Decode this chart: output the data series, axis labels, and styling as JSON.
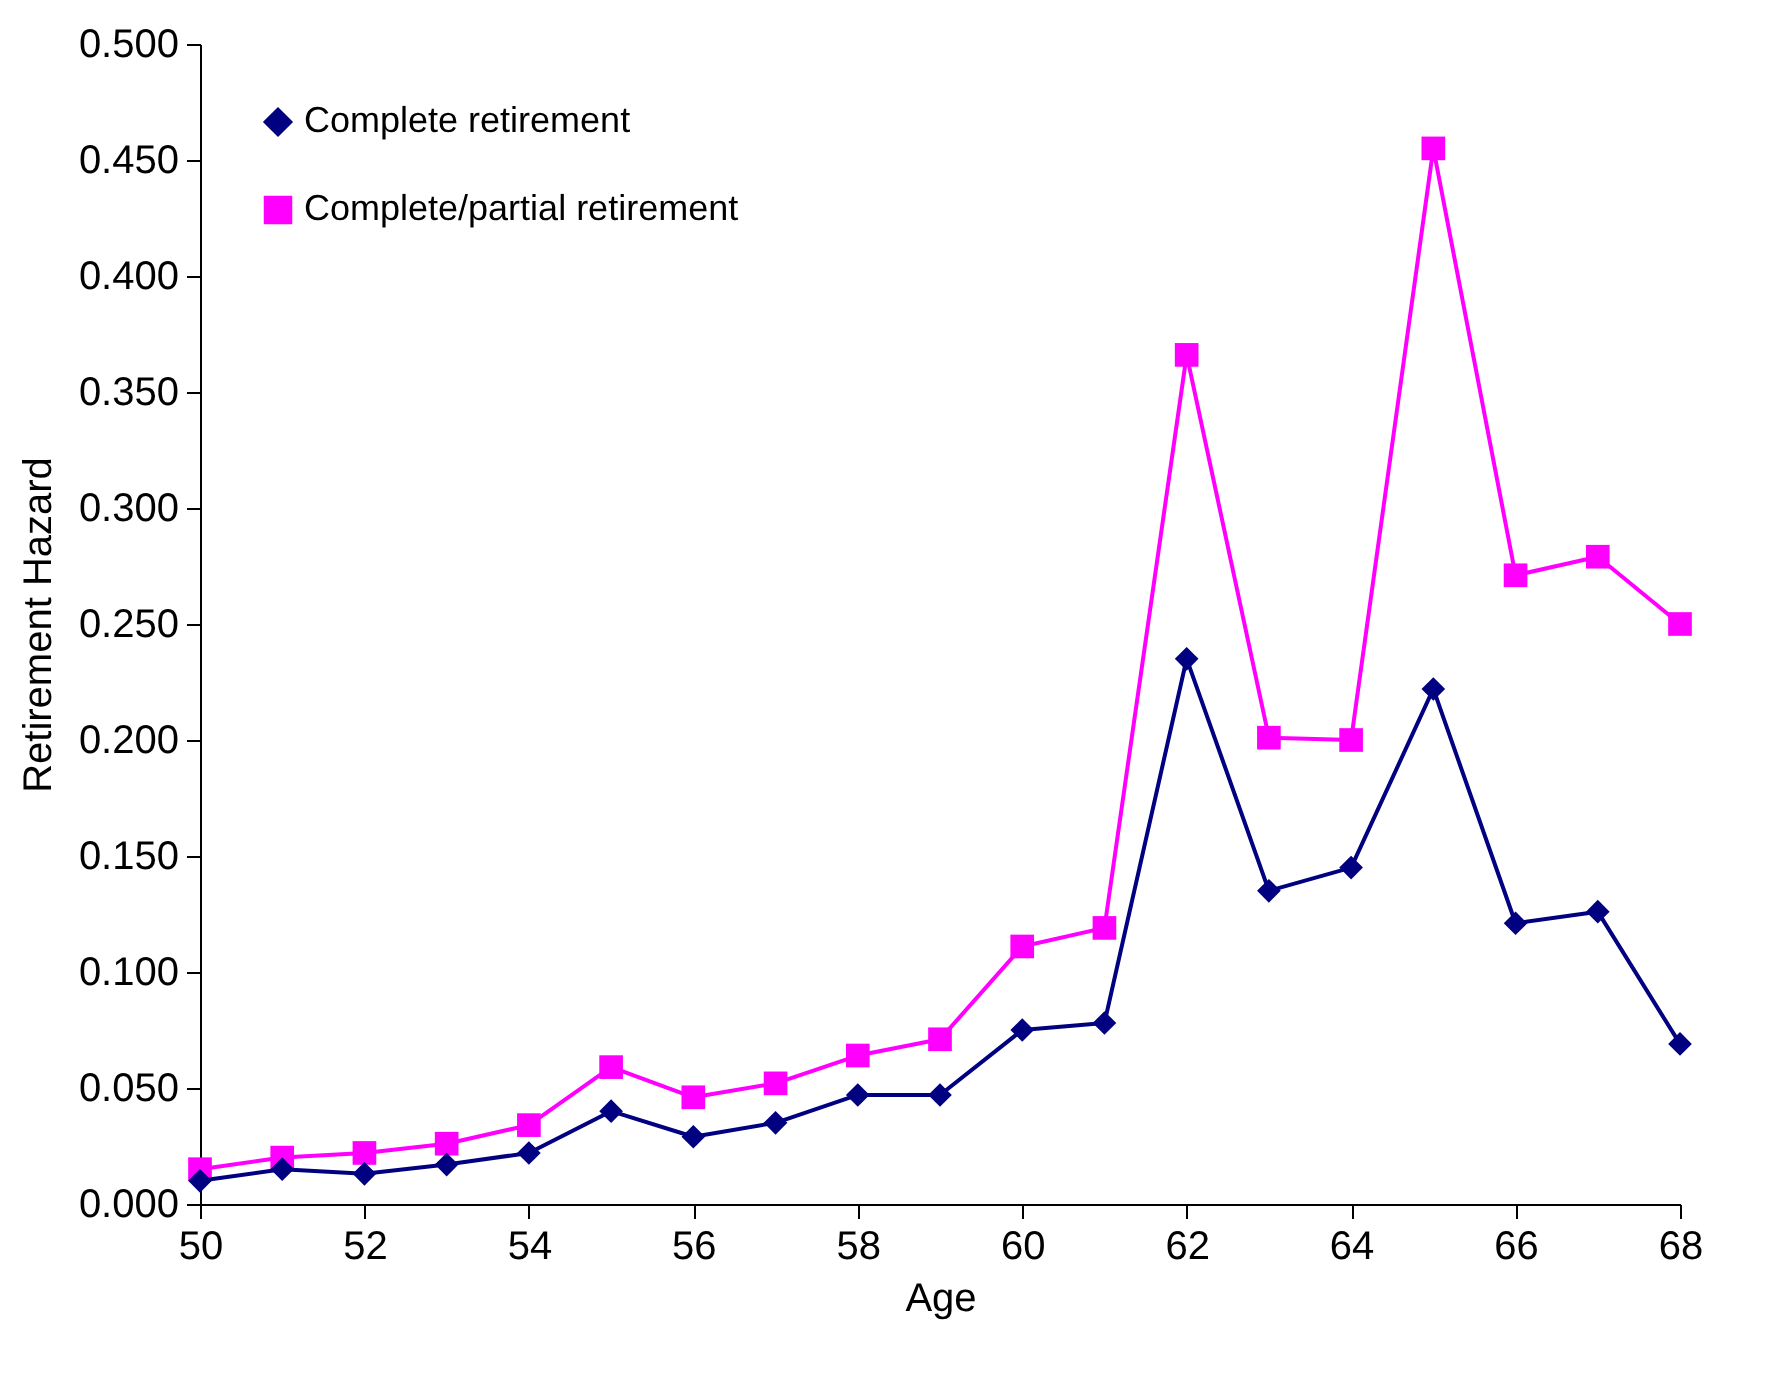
{
  "chart_data": {
    "type": "line",
    "xlabel": "Age",
    "ylabel": "Retirement Hazard",
    "x": [
      50,
      51,
      52,
      53,
      54,
      55,
      56,
      57,
      58,
      59,
      60,
      61,
      62,
      63,
      64,
      65,
      66,
      67,
      68
    ],
    "series": [
      {
        "name": "Complete retirement",
        "color": "#000080",
        "marker": "diamond",
        "values": [
          0.01,
          0.015,
          0.013,
          0.017,
          0.022,
          0.04,
          0.029,
          0.035,
          0.047,
          0.047,
          0.075,
          0.078,
          0.235,
          0.135,
          0.145,
          0.222,
          0.121,
          0.126,
          0.069
        ]
      },
      {
        "name": "Complete/partial retirement",
        "color": "#ff00ff",
        "marker": "square",
        "values": [
          0.015,
          0.02,
          0.022,
          0.026,
          0.034,
          0.059,
          0.046,
          0.052,
          0.064,
          0.071,
          0.111,
          0.119,
          0.366,
          0.201,
          0.2,
          0.455,
          0.271,
          0.279,
          0.25
        ]
      }
    ],
    "xlim": [
      50,
      68
    ],
    "xticks": [
      50,
      52,
      54,
      56,
      58,
      60,
      62,
      64,
      66,
      68
    ],
    "ylim": [
      0,
      0.5
    ],
    "yticks": [
      {
        "value": 0,
        "label": "0.000"
      },
      {
        "value": 0.05,
        "label": "0.050"
      },
      {
        "value": 0.1,
        "label": "0.100"
      },
      {
        "value": 0.15,
        "label": "0.150"
      },
      {
        "value": 0.2,
        "label": "0.200"
      },
      {
        "value": 0.25,
        "label": "0.250"
      },
      {
        "value": 0.3,
        "label": "0.300"
      },
      {
        "value": 0.35,
        "label": "0.350"
      },
      {
        "value": 0.4,
        "label": "0.400"
      },
      {
        "value": 0.45,
        "label": "0.450"
      },
      {
        "value": 0.5,
        "label": "0.500"
      }
    ],
    "grid": false,
    "legend": "top left",
    "line_style": "solid"
  }
}
